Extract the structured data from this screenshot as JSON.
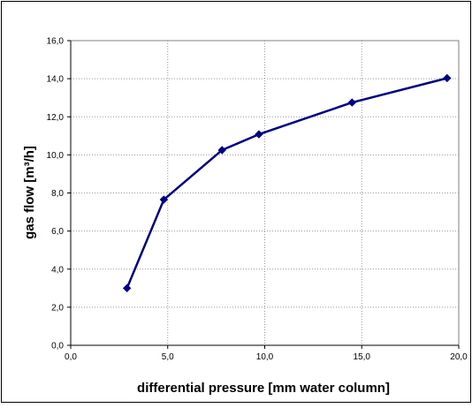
{
  "chart_data": {
    "type": "line",
    "xlabel": "differential pressure [mm water column]",
    "ylabel": "gas flow [m³/h]",
    "xlim": [
      0,
      20
    ],
    "ylim": [
      0,
      16
    ],
    "x_ticks": [
      "0,0",
      "5,0",
      "10,0",
      "15,0",
      "20,0"
    ],
    "y_ticks": [
      "0,0",
      "2,0",
      "4,0",
      "6,0",
      "8,0",
      "10,0",
      "12,0",
      "14,0",
      "16,0"
    ],
    "grid": true,
    "legend": "none",
    "series": [
      {
        "color": "#000080",
        "marker": "diamond",
        "x": [
          2.9,
          4.8,
          7.8,
          9.7,
          14.5,
          19.4
        ],
        "y": [
          3.0,
          7.65,
          10.25,
          11.08,
          12.75,
          14.03
        ]
      }
    ]
  }
}
